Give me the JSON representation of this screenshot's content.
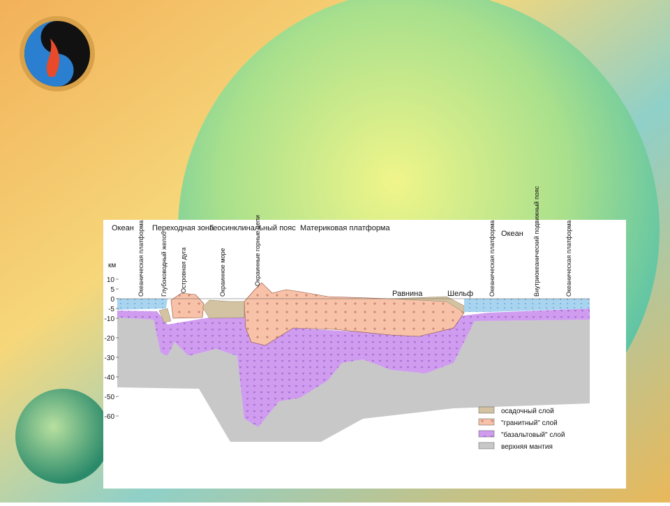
{
  "diagram": {
    "zone_labels": [
      "Океан",
      "Переходная зона",
      "Геосинклинальный пояс",
      "Материковая платформа",
      "Океан",
      "Равнина",
      "Шельф"
    ],
    "vertical_labels": [
      "Океаническая платформа",
      "Глубоководный желоб",
      "Островная дуга",
      "Окраинное море",
      "Окраинные горные цепи",
      "Океаническая платформа",
      "Внутриокеанический подвижный пояс",
      "Океаническая платформа"
    ],
    "depth_axis": {
      "unit": "км",
      "ticks": [
        10,
        5,
        0,
        -5,
        -10,
        -20,
        -30,
        -40,
        -50,
        -60
      ]
    },
    "legend": [
      "осадочный слой",
      "\"гранитный\" слой",
      "\"базальтовый\" слой",
      "верхняя мантия"
    ]
  }
}
